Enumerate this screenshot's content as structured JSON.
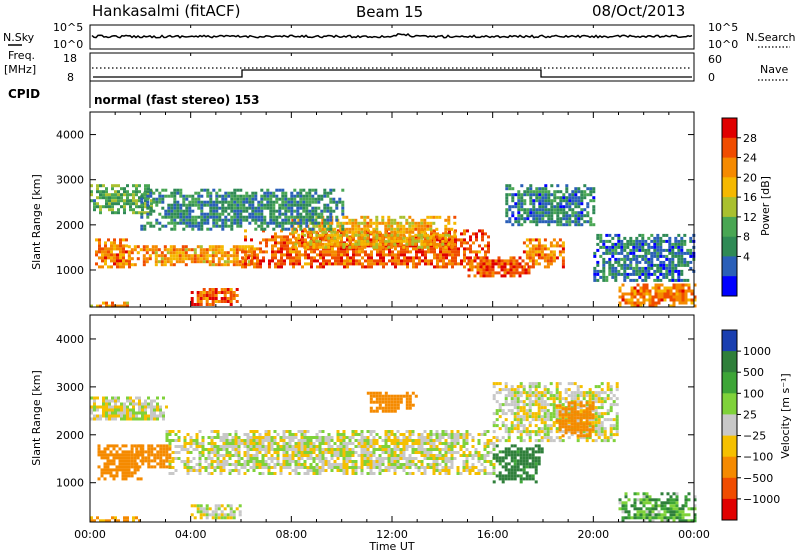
{
  "header": {
    "station": "Hankasalmi (fitACF)",
    "beam": "Beam 15",
    "date": "08/Oct/2013"
  },
  "noise_panel": {
    "left_label": "N.Sky",
    "right_label": "N.Search",
    "left_ticks": [
      "10^5",
      "10^0"
    ],
    "right_ticks": [
      "10^5",
      "10^0"
    ]
  },
  "freq_panel": {
    "left_label_1": "Freq.",
    "left_label_2": "[MHz]",
    "left_ticks": [
      "18",
      "8"
    ],
    "right_label": "Nave",
    "right_ticks": [
      "60",
      "0"
    ]
  },
  "cpid": {
    "label": "CPID",
    "value": "normal (fast stereo) 153"
  },
  "x_axis": {
    "label": "Time UT",
    "ticks": [
      "00:00",
      "04:00",
      "08:00",
      "12:00",
      "16:00",
      "20:00",
      "00:00"
    ]
  },
  "power_panel": {
    "ylabel": "Slant Range [km]",
    "yticks": [
      "4000",
      "3000",
      "2000",
      "1000"
    ],
    "colorbar_label": "Power [dB]",
    "colorbar_ticks": [
      "28",
      "24",
      "20",
      "16",
      "12",
      "8",
      "4"
    ]
  },
  "velocity_panel": {
    "ylabel": "Slant Range [km]",
    "yticks": [
      "4000",
      "3000",
      "2000",
      "1000"
    ],
    "colorbar_label": "Velocity [m s⁻¹]",
    "colorbar_ticks": [
      "1000",
      "500",
      "100",
      "25",
      "−25",
      "−100",
      "−500",
      "−1000"
    ]
  },
  "colors": {
    "power_scale": [
      "#0000ff",
      "#2a5fb8",
      "#2f8a55",
      "#49a653",
      "#a9c02f",
      "#f5b800",
      "#f58a00",
      "#f04c00",
      "#e00000"
    ],
    "velocity_scale": [
      "#1a3fb0",
      "#2f7f3a",
      "#3da537",
      "#7fd23a",
      "#c8c8c8",
      "#f5c000",
      "#f58a00",
      "#f04c00",
      "#e00000"
    ]
  },
  "chart_data": [
    {
      "type": "heatmap",
      "title": "Power",
      "xlabel": "Time UT",
      "ylabel": "Slant Range [km]",
      "xlim": [
        0,
        24
      ],
      "ylim": [
        180,
        4500
      ],
      "colorbar": {
        "label": "Power [dB]",
        "range": [
          0,
          32
        ],
        "ticks": [
          4,
          8,
          12,
          16,
          20,
          24,
          28
        ]
      },
      "regions": [
        {
          "t": [
            0.2,
            1.6
          ],
          "r": [
            1050,
            1700
          ],
          "value": 24
        },
        {
          "t": [
            1.5,
            6.5
          ],
          "r": [
            1100,
            1550
          ],
          "value": 22
        },
        {
          "t": [
            6.0,
            15.8
          ],
          "r": [
            1050,
            1900
          ],
          "value": 26
        },
        {
          "t": [
            8.0,
            14.5
          ],
          "r": [
            1500,
            2200
          ],
          "value": 20
        },
        {
          "t": [
            15.0,
            17.5
          ],
          "r": [
            900,
            1300
          ],
          "value": 27
        },
        {
          "t": [
            17.2,
            18.8
          ],
          "r": [
            1100,
            1700
          ],
          "value": 24
        },
        {
          "t": [
            4.0,
            5.8
          ],
          "r": [
            250,
            600
          ],
          "value": 26
        },
        {
          "t": [
            0.0,
            1.5
          ],
          "r": [
            200,
            300
          ],
          "value": 22
        },
        {
          "t": [
            21.0,
            24.0
          ],
          "r": [
            200,
            700
          ],
          "value": 24
        },
        {
          "t": [
            0.0,
            2.5
          ],
          "r": [
            2300,
            2900
          ],
          "value": 12
        },
        {
          "t": [
            2.0,
            10.0
          ],
          "r": [
            1900,
            2800
          ],
          "value": 9
        },
        {
          "t": [
            16.5,
            20.0
          ],
          "r": [
            2000,
            2900
          ],
          "value": 8
        },
        {
          "t": [
            20.0,
            24.0
          ],
          "r": [
            800,
            1800
          ],
          "value": 7
        }
      ]
    },
    {
      "type": "heatmap",
      "title": "Velocity",
      "xlabel": "Time UT",
      "ylabel": "Slant Range [km]",
      "xlim": [
        0,
        24
      ],
      "ylim": [
        180,
        4500
      ],
      "colorbar": {
        "label": "Velocity [m s⁻¹]",
        "levels": [
          -1000,
          -500,
          -100,
          -25,
          25,
          100,
          500,
          1000
        ]
      },
      "regions": [
        {
          "t": [
            0.0,
            3.0
          ],
          "r": [
            2300,
            2800
          ],
          "value": 0
        },
        {
          "t": [
            3.0,
            16.0
          ],
          "r": [
            1200,
            2100
          ],
          "value": 0
        },
        {
          "t": [
            16.0,
            21.0
          ],
          "r": [
            1900,
            3100
          ],
          "value": 0
        },
        {
          "t": [
            0.3,
            2.0
          ],
          "r": [
            1100,
            1800
          ],
          "value": -300
        },
        {
          "t": [
            1.8,
            3.2
          ],
          "r": [
            1350,
            1800
          ],
          "value": -300
        },
        {
          "t": [
            16.0,
            18.0
          ],
          "r": [
            1000,
            1800
          ],
          "value": 150
        },
        {
          "t": [
            11.0,
            13.0
          ],
          "r": [
            2500,
            2900
          ],
          "value": -300
        },
        {
          "t": [
            18.5,
            20.0
          ],
          "r": [
            2000,
            2700
          ],
          "value": -300
        },
        {
          "t": [
            21.0,
            24.0
          ],
          "r": [
            200,
            800
          ],
          "value": 80
        },
        {
          "t": [
            4.0,
            6.0
          ],
          "r": [
            250,
            550
          ],
          "value": 0
        },
        {
          "t": [
            0.0,
            2.0
          ],
          "r": [
            200,
            300
          ],
          "value": -100
        }
      ]
    }
  ]
}
